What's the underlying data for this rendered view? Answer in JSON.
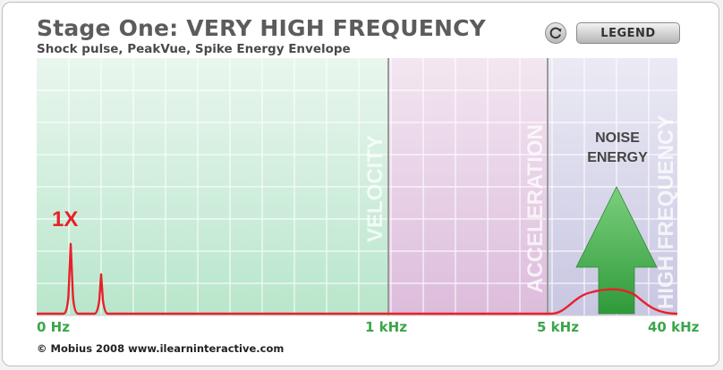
{
  "header": {
    "title": "Stage One: VERY HIGH FREQUENCY",
    "subtitle": "Shock pulse, PeakVue, Spike Energy Envelope"
  },
  "toolbar": {
    "reset_icon": "refresh-icon",
    "legend_label": "LEGEND"
  },
  "zones": {
    "velocity": "VELOCITY",
    "acceleration": "ACCELERATION",
    "high_frequency": "HIGH FREQUENCY"
  },
  "annotations": {
    "peak_label": "1X",
    "noise_label_line1": "NOISE",
    "noise_label_line2": "ENERGY"
  },
  "axis": {
    "ticks": [
      "0 Hz",
      "1 kHz",
      "5 kHz",
      "40 kHz"
    ]
  },
  "colors": {
    "velocity_zone": "#cdeedb",
    "acceleration_zone": "#e7cfe6",
    "high_frequency_zone": "#d7d6ea",
    "spectrum_line": "#e8202a",
    "axis_label": "#3aa64a",
    "arrow": "#49b14f"
  },
  "footer": {
    "copyright": "© Mobius 2008 www.ilearninteractive.com"
  }
}
